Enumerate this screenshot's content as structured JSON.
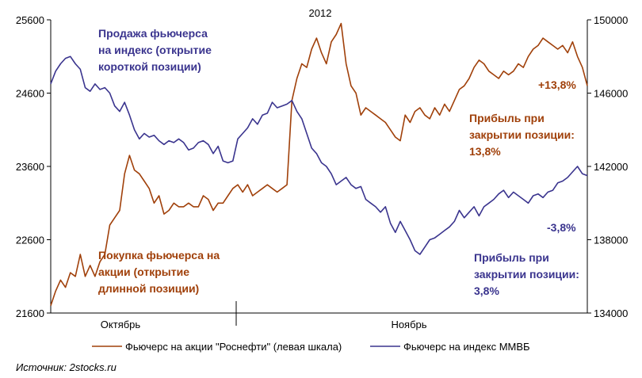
{
  "chart_data": {
    "type": "line",
    "title": "2012",
    "x_labels": [
      "Октябрь",
      "Ноябрь"
    ],
    "n_points": 110,
    "y_left": {
      "min": 21600,
      "max": 25600,
      "ticks": [
        "21600",
        "22600",
        "23600",
        "24600",
        "25600"
      ]
    },
    "y_right": {
      "min": 134000,
      "max": 150000,
      "ticks": [
        "134000",
        "138000",
        "142000",
        "146000",
        "150000"
      ]
    },
    "grid": false,
    "legend_position": "bottom",
    "series": [
      {
        "name": "Фьючерс на акции \"Роснефти\" (левая шкала)",
        "axis": "left",
        "color": "#a0400a",
        "values": [
          21700,
          21900,
          22050,
          21950,
          22150,
          22100,
          22400,
          22100,
          22250,
          22100,
          22300,
          22400,
          22800,
          22900,
          23000,
          23500,
          23750,
          23550,
          23500,
          23400,
          23300,
          23100,
          23200,
          22950,
          23000,
          23100,
          23050,
          23050,
          23100,
          23050,
          23050,
          23200,
          23150,
          23000,
          23100,
          23100,
          23200,
          23300,
          23350,
          23250,
          23350,
          23200,
          23250,
          23300,
          23350,
          23300,
          23250,
          23300,
          23350,
          24500,
          24800,
          25000,
          24950,
          25200,
          25350,
          25150,
          25000,
          25300,
          25400,
          25550,
          25000,
          24700,
          24600,
          24300,
          24400,
          24350,
          24300,
          24250,
          24200,
          24100,
          24000,
          23950,
          24300,
          24200,
          24350,
          24400,
          24300,
          24250,
          24400,
          24300,
          24450,
          24350,
          24500,
          24650,
          24700,
          24800,
          24950,
          25050,
          25000,
          24900,
          24850,
          24800,
          24900,
          24850,
          24900,
          25000,
          24950,
          25100,
          25200,
          25250,
          25350,
          25300,
          25250,
          25200,
          25250,
          25150,
          25300,
          25100,
          24950,
          24700
        ]
      },
      {
        "name": "Фьючерс на индекс ММВБ",
        "axis": "right",
        "color": "#3a348e",
        "values": [
          146500,
          147200,
          147600,
          147900,
          148000,
          147600,
          147300,
          146300,
          146100,
          146500,
          146200,
          146300,
          146000,
          145300,
          145000,
          145500,
          144800,
          144000,
          143500,
          143800,
          143600,
          143700,
          143400,
          143200,
          143400,
          143300,
          143500,
          143300,
          142900,
          143000,
          143300,
          143400,
          143200,
          142700,
          143100,
          142300,
          142200,
          142300,
          143500,
          143800,
          144100,
          144600,
          144300,
          144800,
          144900,
          145500,
          145200,
          145300,
          145400,
          145600,
          145000,
          144600,
          143800,
          143000,
          142700,
          142200,
          142000,
          141600,
          141000,
          141200,
          141400,
          141000,
          140800,
          140900,
          140200,
          140000,
          139800,
          139500,
          139800,
          138900,
          138400,
          139000,
          138500,
          138000,
          137400,
          137200,
          137600,
          138000,
          138100,
          138300,
          138500,
          138700,
          139000,
          139600,
          139200,
          139500,
          139800,
          139300,
          139800,
          140000,
          140200,
          140500,
          140700,
          140300,
          140600,
          140400,
          140200,
          140000,
          140400,
          140500,
          140300,
          140600,
          140700,
          141100,
          141200,
          141400,
          141700,
          142000,
          141600,
          141500
        ]
      }
    ],
    "annotations": [
      {
        "lines": [
          "Продажа фьючерса",
          "на индекс (открытие",
          "короткой позиции)"
        ],
        "color": "#3a348e"
      },
      {
        "lines": [
          "Покупка фьючерса на",
          "акции (открытие",
          "длинной позиции)"
        ],
        "color": "#a0400a"
      },
      {
        "lines": [
          "Прибыль при",
          "закрытии позиции:",
          "13,8%"
        ],
        "color": "#a0400a"
      },
      {
        "lines": [
          "Прибыль при",
          "закрытии позиции:",
          "3,8%"
        ],
        "color": "#3a348e"
      },
      {
        "lines": [
          "+13,8%"
        ],
        "color": "#a0400a"
      },
      {
        "lines": [
          "-3,8%"
        ],
        "color": "#3a348e"
      }
    ],
    "source": "Источник: 2stocks.ru"
  }
}
